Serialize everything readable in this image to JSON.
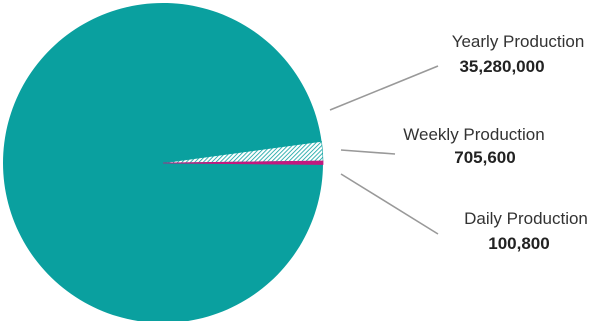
{
  "chart_data": {
    "type": "pie",
    "slices": [
      {
        "label": "Yearly Production",
        "value": 35280000,
        "value_label": "35,280,000",
        "color": "#0aa09f"
      },
      {
        "label": "Weekly Production",
        "value": 705600,
        "value_label": "705,600",
        "color": "#0aa09f",
        "pattern": "hatched"
      },
      {
        "label": "Daily Production",
        "value": 100800,
        "value_label": "100,800",
        "color": "#c2187e"
      }
    ],
    "leader_line_color": "#999999"
  }
}
